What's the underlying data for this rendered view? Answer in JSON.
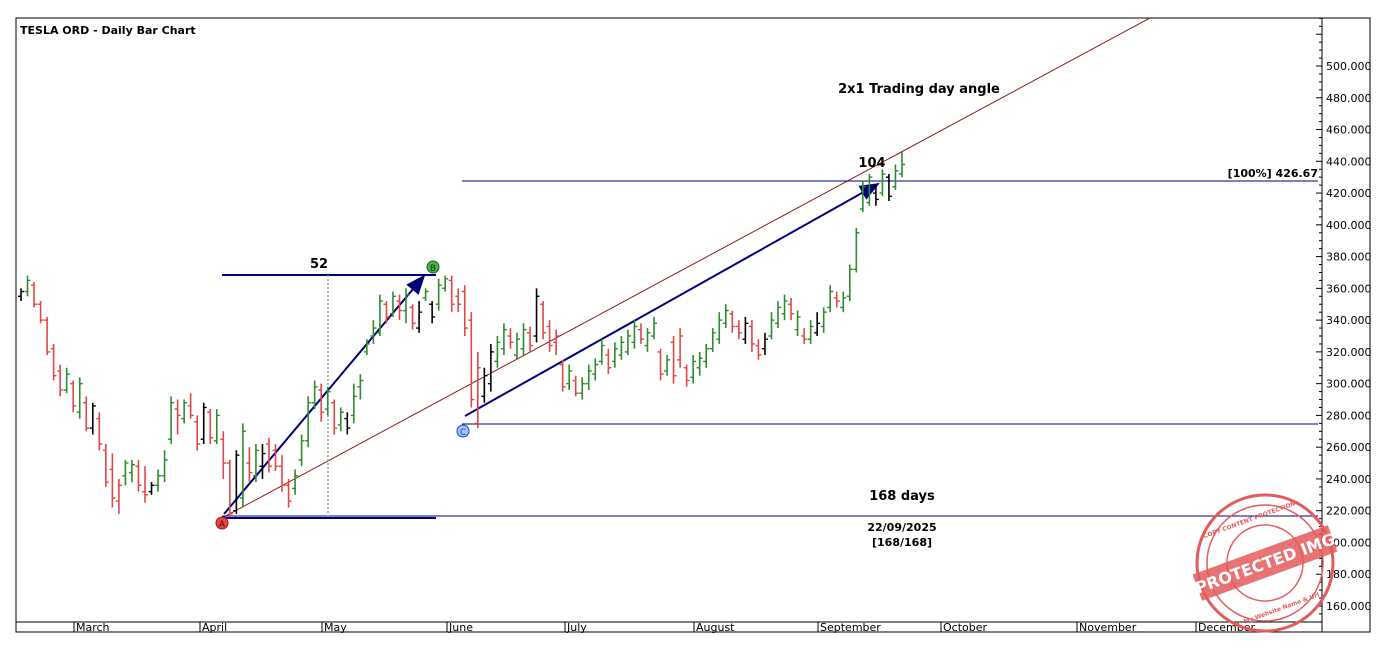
{
  "window": {
    "title": "TESLA ORD - Daily Bar Chart"
  },
  "annotations": {
    "angle_label": "2x1 Trading day angle",
    "count_ab": "52",
    "count_cd": "104",
    "days_label": "168 days",
    "date_label": "22/09/2025",
    "ratio_label": "[168/168]",
    "level_label": "[100%] 426.67",
    "point_a": "A",
    "point_b": "B",
    "point_c": "C"
  },
  "watermark": {
    "main_text": "PROTECTED IMG",
    "ring_text": "COPY CONTENT PROTECTION",
    "bottom_text": "My Website Name & Url",
    "color": "#e35b5b"
  },
  "colors": {
    "up_bar": "#2e8b2e",
    "down_bar": "#e04848",
    "neutral_bar": "#000000",
    "trend_line": "#00007a",
    "angle_line": "#8b1a1a",
    "grid_line": "#aaaaaa"
  },
  "chart_data": {
    "type": "ohlc",
    "title": "TESLA ORD - Daily Bar Chart",
    "ylim": [
      145,
      540
    ],
    "y_ticks": [
      "160.000",
      "180.000",
      "200.000",
      "220.000",
      "240.000",
      "260.000",
      "280.000",
      "300.000",
      "320.000",
      "340.000",
      "360.000",
      "380.000",
      "400.000",
      "420.000",
      "440.000",
      "460.000",
      "480.000",
      "500.000"
    ],
    "x_tick_labels": [
      "March",
      "April",
      "May",
      "June",
      "July",
      "August",
      "September",
      "October",
      "November",
      "December"
    ],
    "grid": false,
    "series": [
      {
        "type": "ohlc",
        "points": [
          [
            0,
            352,
            360,
            355,
            358,
            "neutral"
          ],
          [
            1,
            355,
            368,
            358,
            365,
            "up"
          ],
          [
            2,
            348,
            364,
            362,
            350,
            "down"
          ],
          [
            3,
            338,
            352,
            350,
            340,
            "down"
          ],
          [
            4,
            318,
            342,
            340,
            320,
            "down"
          ],
          [
            5,
            302,
            325,
            322,
            305,
            "down"
          ],
          [
            6,
            292,
            312,
            308,
            296,
            "down"
          ],
          [
            7,
            294,
            310,
            296,
            306,
            "up"
          ],
          [
            8,
            282,
            302,
            300,
            286,
            "down"
          ],
          [
            9,
            278,
            304,
            282,
            300,
            "up"
          ],
          [
            10,
            270,
            292,
            288,
            272,
            "down"
          ],
          [
            11,
            268,
            288,
            272,
            286,
            "neutral"
          ],
          [
            12,
            258,
            282,
            278,
            262,
            "down"
          ],
          [
            13,
            235,
            262,
            258,
            238,
            "down"
          ],
          [
            14,
            222,
            256,
            246,
            228,
            "down"
          ],
          [
            15,
            218,
            240,
            226,
            236,
            "down"
          ],
          [
            16,
            236,
            252,
            242,
            250,
            "up"
          ],
          [
            17,
            238,
            252,
            244,
            249,
            "up"
          ],
          [
            18,
            232,
            252,
            248,
            236,
            "down"
          ],
          [
            19,
            225,
            248,
            232,
            230,
            "down"
          ],
          [
            20,
            230,
            238,
            232,
            236,
            "neutral"
          ],
          [
            21,
            232,
            246,
            236,
            242,
            "up"
          ],
          [
            22,
            238,
            258,
            242,
            252,
            "up"
          ],
          [
            23,
            262,
            292,
            265,
            288,
            "up"
          ],
          [
            24,
            268,
            290,
            284,
            280,
            "down"
          ],
          [
            25,
            275,
            290,
            278,
            288,
            "up"
          ],
          [
            26,
            278,
            294,
            286,
            280,
            "down"
          ],
          [
            27,
            258,
            280,
            276,
            262,
            "down"
          ],
          [
            28,
            262,
            288,
            265,
            285,
            "neutral"
          ],
          [
            29,
            262,
            284,
            282,
            266,
            "down"
          ],
          [
            30,
            262,
            284,
            264,
            280,
            "up"
          ],
          [
            31,
            240,
            270,
            265,
            250,
            "down"
          ],
          [
            32,
            216,
            252,
            250,
            218,
            "down"
          ],
          [
            33,
            218,
            258,
            220,
            255,
            "neutral"
          ],
          [
            34,
            222,
            275,
            228,
            270,
            "up"
          ],
          [
            35,
            238,
            260,
            250,
            244,
            "down"
          ],
          [
            36,
            238,
            262,
            242,
            258,
            "up"
          ],
          [
            37,
            240,
            262,
            248,
            256,
            "neutral"
          ],
          [
            38,
            244,
            266,
            262,
            248,
            "down"
          ],
          [
            39,
            245,
            262,
            258,
            248,
            "down"
          ],
          [
            40,
            232,
            255,
            248,
            236,
            "down"
          ],
          [
            41,
            222,
            240,
            236,
            226,
            "down"
          ],
          [
            42,
            230,
            246,
            234,
            242,
            "up"
          ],
          [
            43,
            248,
            268,
            252,
            264,
            "up"
          ],
          [
            44,
            260,
            292,
            264,
            288,
            "up"
          ],
          [
            45,
            284,
            302,
            288,
            298,
            "up"
          ],
          [
            46,
            276,
            300,
            296,
            282,
            "down"
          ],
          [
            47,
            280,
            298,
            284,
            295,
            "up"
          ],
          [
            48,
            268,
            290,
            288,
            272,
            "down"
          ],
          [
            49,
            270,
            285,
            274,
            282,
            "up"
          ],
          [
            50,
            268,
            282,
            278,
            272,
            "neutral"
          ],
          [
            51,
            275,
            300,
            280,
            292,
            "up"
          ],
          [
            52,
            290,
            306,
            298,
            302,
            "up"
          ],
          [
            53,
            318,
            328,
            320,
            325,
            "up"
          ],
          [
            54,
            325,
            340,
            330,
            335,
            "up"
          ],
          [
            55,
            330,
            356,
            332,
            352,
            "up"
          ],
          [
            56,
            338,
            352,
            350,
            342,
            "down"
          ],
          [
            57,
            342,
            358,
            344,
            355,
            "up"
          ],
          [
            58,
            340,
            356,
            352,
            346,
            "down"
          ],
          [
            59,
            338,
            360,
            346,
            356,
            "up"
          ],
          [
            60,
            334,
            350,
            348,
            338,
            "down"
          ],
          [
            61,
            332,
            352,
            335,
            345,
            "neutral"
          ],
          [
            62,
            352,
            360,
            354,
            358,
            "up"
          ],
          [
            63,
            338,
            352,
            350,
            342,
            "neutral"
          ],
          [
            64,
            346,
            366,
            350,
            362,
            "up"
          ],
          [
            65,
            358,
            368,
            360,
            366,
            "up"
          ],
          [
            66,
            345,
            368,
            365,
            350,
            "down"
          ],
          [
            67,
            345,
            360,
            355,
            350,
            "down"
          ],
          [
            68,
            330,
            362,
            358,
            335,
            "down"
          ],
          [
            69,
            285,
            345,
            340,
            290,
            "down"
          ],
          [
            70,
            272,
            320,
            275,
            310,
            "down"
          ],
          [
            71,
            288,
            310,
            292,
            305,
            "neutral"
          ],
          [
            72,
            295,
            325,
            300,
            320,
            "neutral"
          ],
          [
            73,
            310,
            330,
            314,
            326,
            "up"
          ],
          [
            74,
            318,
            338,
            322,
            334,
            "up"
          ],
          [
            75,
            322,
            335,
            330,
            326,
            "down"
          ],
          [
            76,
            315,
            332,
            318,
            328,
            "up"
          ],
          [
            77,
            318,
            338,
            322,
            334,
            "up"
          ],
          [
            78,
            320,
            336,
            332,
            324,
            "down"
          ],
          [
            79,
            326,
            360,
            330,
            355,
            "neutral"
          ],
          [
            80,
            328,
            352,
            350,
            332,
            "down"
          ],
          [
            81,
            320,
            340,
            336,
            324,
            "down"
          ],
          [
            82,
            318,
            334,
            326,
            330,
            "down"
          ],
          [
            83,
            295,
            315,
            312,
            298,
            "down"
          ],
          [
            84,
            296,
            312,
            300,
            308,
            "up"
          ],
          [
            85,
            292,
            305,
            302,
            294,
            "down"
          ],
          [
            86,
            290,
            304,
            294,
            300,
            "up"
          ],
          [
            87,
            296,
            312,
            300,
            308,
            "up"
          ],
          [
            88,
            302,
            316,
            306,
            312,
            "up"
          ],
          [
            89,
            312,
            328,
            314,
            324,
            "up"
          ],
          [
            90,
            306,
            322,
            318,
            310,
            "down"
          ],
          [
            91,
            310,
            326,
            314,
            322,
            "up"
          ],
          [
            92,
            315,
            330,
            318,
            326,
            "up"
          ],
          [
            93,
            318,
            334,
            320,
            330,
            "up"
          ],
          [
            94,
            322,
            340,
            326,
            336,
            "up"
          ],
          [
            95,
            325,
            338,
            334,
            328,
            "down"
          ],
          [
            96,
            320,
            335,
            324,
            332,
            "up"
          ],
          [
            97,
            328,
            342,
            330,
            338,
            "up"
          ],
          [
            98,
            302,
            322,
            320,
            306,
            "down"
          ],
          [
            99,
            305,
            318,
            308,
            315,
            "up"
          ],
          [
            100,
            300,
            330,
            326,
            305,
            "down"
          ],
          [
            101,
            310,
            335,
            315,
            330,
            "down"
          ],
          [
            102,
            298,
            312,
            310,
            302,
            "down"
          ],
          [
            103,
            300,
            318,
            304,
            314,
            "up"
          ],
          [
            104,
            305,
            320,
            310,
            316,
            "up"
          ],
          [
            105,
            310,
            325,
            314,
            322,
            "up"
          ],
          [
            106,
            320,
            335,
            322,
            332,
            "up"
          ],
          [
            107,
            325,
            345,
            328,
            340,
            "up"
          ],
          [
            108,
            335,
            350,
            338,
            346,
            "up"
          ],
          [
            109,
            332,
            346,
            344,
            336,
            "down"
          ],
          [
            110,
            328,
            340,
            336,
            332,
            "down"
          ],
          [
            111,
            325,
            342,
            328,
            338,
            "neutral"
          ],
          [
            112,
            320,
            340,
            336,
            325,
            "down"
          ],
          [
            113,
            315,
            328,
            324,
            318,
            "down"
          ],
          [
            114,
            318,
            332,
            322,
            328,
            "neutral"
          ],
          [
            115,
            328,
            345,
            330,
            340,
            "up"
          ],
          [
            116,
            335,
            352,
            338,
            348,
            "up"
          ],
          [
            117,
            340,
            356,
            344,
            352,
            "up"
          ],
          [
            118,
            340,
            354,
            350,
            344,
            "down"
          ],
          [
            119,
            330,
            346,
            334,
            342,
            "up"
          ],
          [
            120,
            325,
            335,
            330,
            328,
            "down"
          ],
          [
            121,
            325,
            340,
            328,
            336,
            "up"
          ],
          [
            122,
            330,
            345,
            332,
            338,
            "neutral"
          ],
          [
            123,
            332,
            348,
            336,
            345,
            "up"
          ],
          [
            124,
            345,
            362,
            348,
            358,
            "up"
          ],
          [
            125,
            348,
            358,
            354,
            352,
            "down"
          ],
          [
            126,
            345,
            358,
            348,
            354,
            "up"
          ],
          [
            127,
            352,
            375,
            355,
            372,
            "up"
          ],
          [
            128,
            370,
            398,
            372,
            395,
            "up"
          ],
          [
            129,
            408,
            428,
            410,
            424,
            "up"
          ],
          [
            130,
            412,
            432,
            414,
            430,
            "up"
          ],
          [
            131,
            412,
            425,
            420,
            416,
            "neutral"
          ],
          [
            132,
            418,
            435,
            420,
            432,
            "up"
          ],
          [
            133,
            415,
            432,
            430,
            418,
            "neutral"
          ],
          [
            134,
            422,
            438,
            424,
            434,
            "up"
          ],
          [
            135,
            430,
            446,
            432,
            438,
            "up"
          ]
        ]
      }
    ],
    "levels": [
      {
        "label": "[100%] 426.67",
        "value": 426.67
      },
      {
        "value": 275
      },
      {
        "value": 216
      }
    ]
  }
}
